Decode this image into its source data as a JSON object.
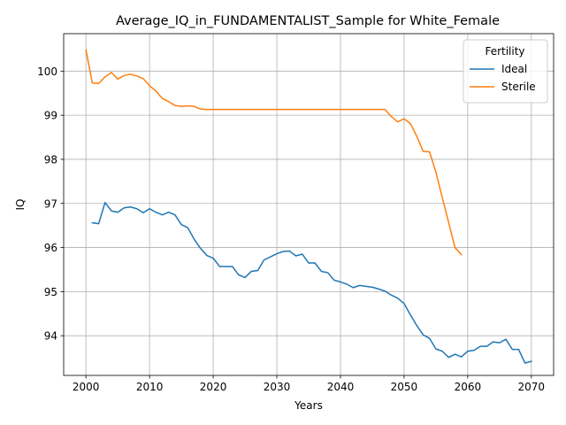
{
  "chart_data": {
    "type": "line",
    "title": "Average_IQ_in_FUNDAMENTALIST_Sample for White_Female",
    "xlabel": "Years",
    "ylabel": "IQ",
    "xlim": [
      1996.5,
      2073.5
    ],
    "ylim": [
      93.1,
      100.85
    ],
    "xticks": [
      2000,
      2010,
      2020,
      2030,
      2040,
      2050,
      2060,
      2070
    ],
    "yticks": [
      94,
      95,
      96,
      97,
      98,
      99,
      100
    ],
    "grid": true,
    "legend": {
      "title": "Fertility",
      "placement": "top-right"
    },
    "series": [
      {
        "name": "Ideal",
        "color": "#1f77b4",
        "x": [
          2001,
          2002,
          2003,
          2004,
          2005,
          2006,
          2007,
          2008,
          2009,
          2010,
          2011,
          2012,
          2013,
          2014,
          2015,
          2016,
          2017,
          2018,
          2019,
          2020,
          2021,
          2022,
          2023,
          2024,
          2025,
          2026,
          2027,
          2028,
          2029,
          2030,
          2031,
          2032,
          2033,
          2034,
          2035,
          2036,
          2037,
          2038,
          2039,
          2040,
          2041,
          2042,
          2043,
          2044,
          2045,
          2046,
          2047,
          2048,
          2049,
          2050,
          2051,
          2052,
          2053,
          2054,
          2055,
          2056,
          2057,
          2058,
          2059,
          2060,
          2061,
          2062,
          2063,
          2064,
          2065,
          2066,
          2067,
          2068,
          2069,
          2070
        ],
        "y": [
          96.56,
          96.54,
          97.02,
          96.83,
          96.8,
          96.9,
          96.92,
          96.88,
          96.79,
          96.88,
          96.8,
          96.74,
          96.8,
          96.74,
          96.52,
          96.45,
          96.19,
          95.98,
          95.82,
          95.76,
          95.57,
          95.57,
          95.57,
          95.38,
          95.32,
          95.46,
          95.48,
          95.72,
          95.79,
          95.86,
          95.91,
          95.92,
          95.81,
          95.85,
          95.65,
          95.65,
          95.46,
          95.43,
          95.26,
          95.22,
          95.17,
          95.09,
          95.14,
          95.12,
          95.1,
          95.06,
          95.01,
          94.92,
          94.85,
          94.73,
          94.47,
          94.23,
          94.02,
          93.94,
          93.7,
          93.65,
          93.51,
          93.58,
          93.52,
          93.65,
          93.67,
          93.76,
          93.76,
          93.86,
          93.84,
          93.92,
          93.69,
          93.69,
          93.38,
          93.42
        ]
      },
      {
        "name": "Sterile",
        "color": "#ff7f0e",
        "x": [
          2000,
          2001,
          2002,
          2003,
          2004,
          2005,
          2006,
          2007,
          2008,
          2009,
          2010,
          2011,
          2012,
          2013,
          2014,
          2015,
          2016,
          2017,
          2018,
          2019,
          2020,
          2021,
          2022,
          2023,
          2024,
          2025,
          2026,
          2027,
          2028,
          2029,
          2030,
          2031,
          2032,
          2033,
          2034,
          2035,
          2036,
          2037,
          2038,
          2039,
          2040,
          2041,
          2042,
          2043,
          2044,
          2045,
          2046,
          2047,
          2048,
          2049,
          2050,
          2051,
          2052,
          2053,
          2054,
          2055,
          2056,
          2057,
          2058,
          2059
        ],
        "y": [
          100.48,
          99.73,
          99.72,
          99.87,
          99.97,
          99.82,
          99.9,
          99.93,
          99.89,
          99.83,
          99.67,
          99.55,
          99.38,
          99.31,
          99.22,
          99.2,
          99.21,
          99.2,
          99.14,
          99.13,
          99.13,
          99.13,
          99.13,
          99.13,
          99.13,
          99.13,
          99.13,
          99.13,
          99.13,
          99.13,
          99.13,
          99.13,
          99.13,
          99.13,
          99.13,
          99.13,
          99.13,
          99.13,
          99.13,
          99.13,
          99.13,
          99.13,
          99.13,
          99.13,
          99.13,
          99.13,
          99.13,
          99.13,
          98.97,
          98.85,
          98.92,
          98.81,
          98.52,
          98.18,
          98.17,
          97.71,
          97.13,
          96.57,
          96.0,
          95.84
        ]
      }
    ]
  }
}
